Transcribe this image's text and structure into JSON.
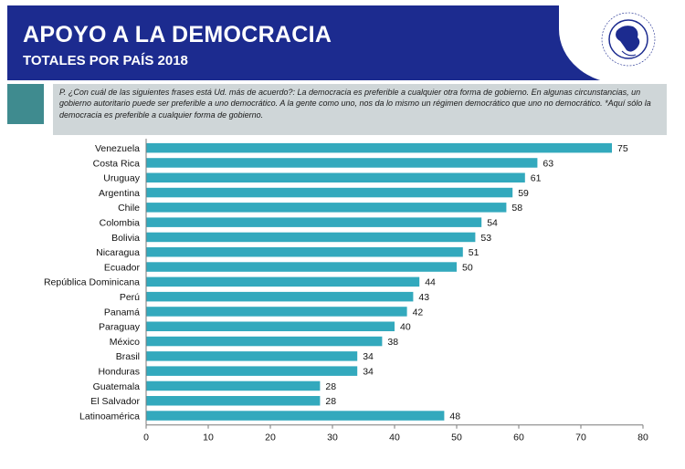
{
  "header": {
    "title": "APOYO A LA DEMOCRACIA",
    "subtitle": "TOTALES POR PAÍS  2018",
    "band_color": "#1c2b8f",
    "logo_icon": "latinobarometro-globe-logo"
  },
  "question": {
    "text": "P. ¿Con cuál de las siguientes frases está Ud. más de acuerdo?: La democracia es preferible a cualquier otra forma de gobierno. En algunas circunstancias, un gobierno autoritario puede ser preferible a uno democrático. A la gente como uno, nos da lo mismo un régimen democrático que uno no democrático. *Aquí sólo la democracia es preferible a cualquier forma de gobierno."
  },
  "chart_data": {
    "type": "bar",
    "orientation": "horizontal",
    "categories": [
      "Venezuela",
      "Costa Rica",
      "Uruguay",
      "Argentina",
      "Chile",
      "Colombia",
      "Bolivia",
      "Nicaragua",
      "Ecuador",
      "República Dominicana",
      "Perú",
      "Panamá",
      "Paraguay",
      "México",
      "Brasil",
      "Honduras",
      "Guatemala",
      "El Salvador",
      "Latinoamérica"
    ],
    "values": [
      75,
      63,
      61,
      59,
      58,
      54,
      53,
      51,
      50,
      44,
      43,
      42,
      40,
      38,
      34,
      34,
      28,
      28,
      48
    ],
    "data_labels": [
      "75",
      "63",
      "61",
      "59",
      "58",
      "54",
      "53",
      "51",
      "50",
      "44",
      "43",
      "42",
      "40",
      "38",
      "34",
      "34",
      "28",
      "28",
      "48"
    ],
    "xticks": [
      "0",
      "10",
      "20",
      "30",
      "40",
      "50",
      "60",
      "70",
      "80"
    ],
    "xlim": [
      0,
      80
    ],
    "bar_color": "#33a9bd",
    "grid": false,
    "title": "",
    "xlabel": "",
    "ylabel": ""
  }
}
